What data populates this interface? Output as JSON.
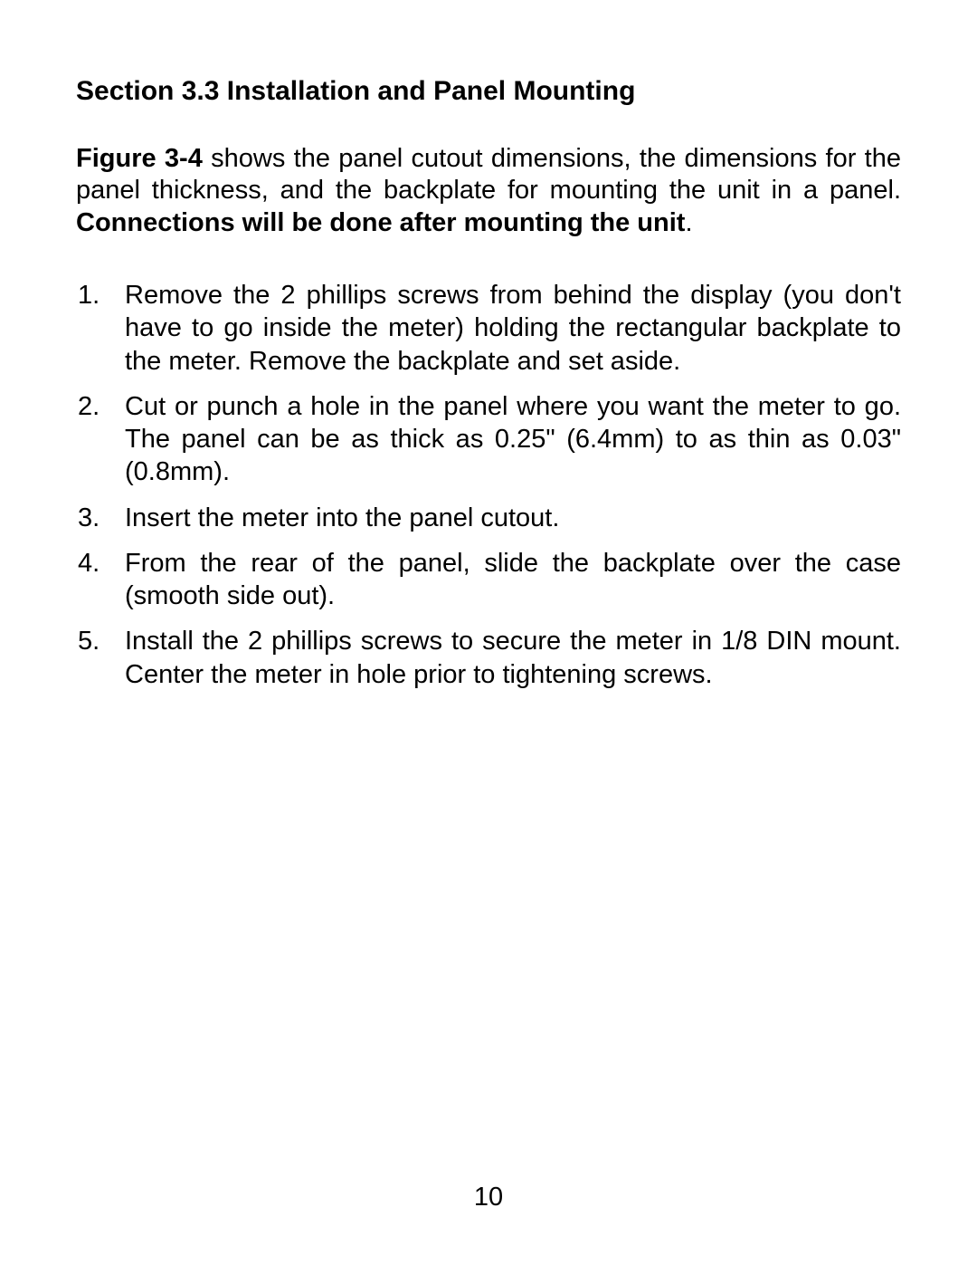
{
  "section": {
    "title": "Section 3.3  Installation and Panel Mounting"
  },
  "intro": {
    "prefix_bold": "Figure 3-4",
    "middle": " shows the panel cutout dimensions, the dimensions for the panel thickness, and the backplate for mounting the unit in a panel. ",
    "suffix_bold": "Connections will be done after mounting the unit",
    "period": "."
  },
  "steps": [
    {
      "num": "1.",
      "text": "Remove the 2 phillips screws from behind the display (you don't have to go inside the meter) holding the rectangular backplate to the meter. Remove the backplate and set aside."
    },
    {
      "num": "2.",
      "text": "Cut or punch a hole in the panel where you want the meter to go.  The panel can be as thick as 0.25\" (6.4mm) to as thin as 0.03\" (0.8mm)."
    },
    {
      "num": "3.",
      "text": "Insert the meter into the panel cutout."
    },
    {
      "num": "4.",
      "text": "From the rear of the panel, slide the backplate over the case (smooth side out)."
    },
    {
      "num": "5.",
      "text": "Install the 2 phillips screws to secure the meter in 1/8 DIN mount.  Center the meter in hole prior to tightening screws."
    }
  ],
  "pageNumber": "10"
}
